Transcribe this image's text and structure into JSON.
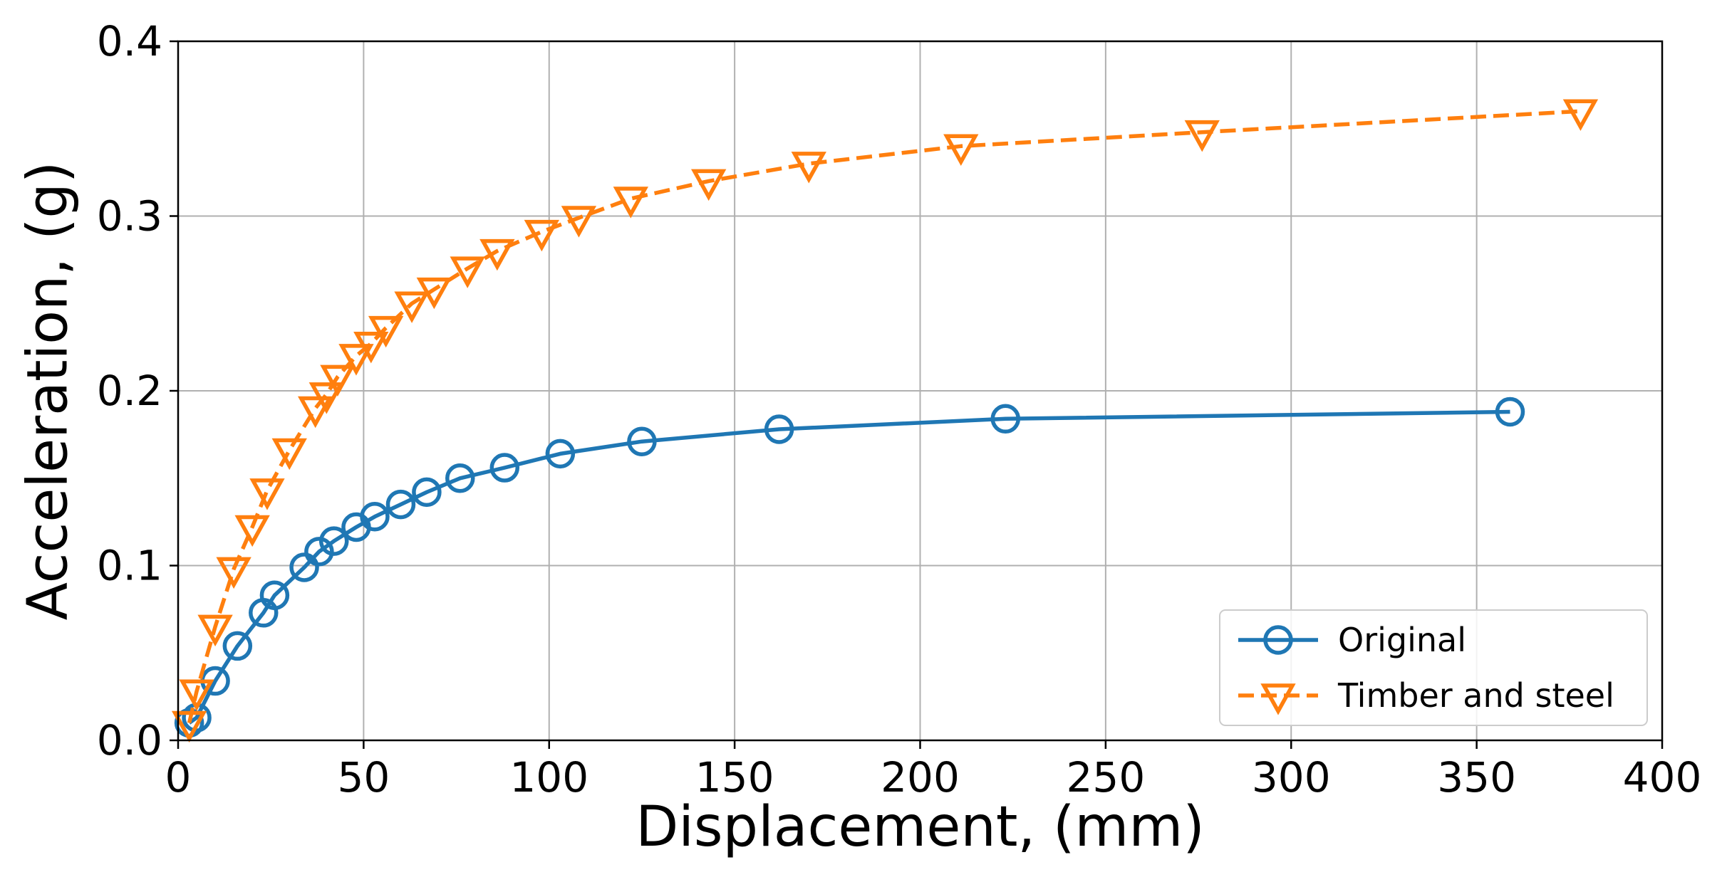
{
  "chart_data": {
    "type": "line",
    "title": "",
    "xlabel": "Displacement, (mm)",
    "ylabel": "Acceleration, (g)",
    "xlim": [
      0,
      400
    ],
    "ylim": [
      0,
      0.4
    ],
    "xticks": [
      0,
      50,
      100,
      150,
      200,
      250,
      300,
      350,
      400
    ],
    "yticks": [
      0.0,
      0.1,
      0.2,
      0.3,
      0.4
    ],
    "xtick_labels": [
      "0",
      "50",
      "100",
      "150",
      "200",
      "250",
      "300",
      "350",
      "400"
    ],
    "ytick_labels": [
      "0.0",
      "0.1",
      "0.2",
      "0.3",
      "0.4"
    ],
    "grid": true,
    "legend_position": "lower-right",
    "series": [
      {
        "name": "Original",
        "color": "#1f77b4",
        "linestyle": "solid",
        "marker": "circle",
        "x": [
          3,
          5,
          10,
          16,
          23,
          26,
          34,
          38,
          42,
          48,
          53,
          60,
          67,
          76,
          88,
          103,
          125,
          162,
          223,
          359
        ],
        "y": [
          0.01,
          0.013,
          0.034,
          0.054,
          0.073,
          0.083,
          0.099,
          0.108,
          0.114,
          0.122,
          0.128,
          0.135,
          0.142,
          0.15,
          0.156,
          0.164,
          0.171,
          0.178,
          0.184,
          0.188
        ]
      },
      {
        "name": "Timber and steel",
        "color": "#ff7f0e",
        "linestyle": "dashed",
        "marker": "triangle-down",
        "x": [
          3,
          5,
          10,
          15,
          20,
          24,
          30,
          37,
          40,
          43,
          48,
          52,
          56,
          63,
          69,
          78,
          86,
          98,
          108,
          122,
          143,
          170,
          211,
          276,
          378
        ],
        "y": [
          0.01,
          0.028,
          0.065,
          0.098,
          0.122,
          0.143,
          0.166,
          0.19,
          0.198,
          0.208,
          0.22,
          0.227,
          0.236,
          0.25,
          0.258,
          0.27,
          0.28,
          0.291,
          0.299,
          0.31,
          0.32,
          0.33,
          0.34,
          0.348,
          0.36
        ]
      }
    ]
  }
}
